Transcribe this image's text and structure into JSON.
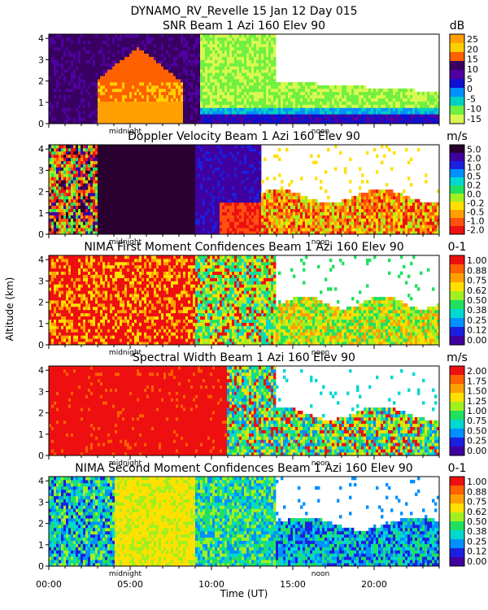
{
  "figure": {
    "title": "DYNAMO_RV_Revelle  15 Jan 12 Day 015",
    "ylabel": "Altitude (km)",
    "xlabel": "Time (UT)",
    "x_ticks": [
      "00:00",
      "05:00",
      "10:00",
      "15:00",
      "20:00"
    ],
    "markers": [
      "midnight",
      "noon"
    ]
  },
  "chart_data": [
    {
      "type": "heatmap",
      "title": "SNR Beam 1 Azi 160 Elev 90",
      "unit": "dB",
      "y_ticks": [
        "0",
        "1",
        "2",
        "3",
        "4"
      ],
      "ylim": [
        0,
        4.2
      ],
      "xlim_hours": [
        0,
        24
      ],
      "colorbar_labels": [
        "25",
        "20",
        "15",
        "10",
        "5",
        "0",
        "-5",
        "-10",
        "-15"
      ],
      "colors": [
        "#ffa000",
        "#ffd000",
        "#ff6000",
        "#380060",
        "#5000a0",
        "#1010d0",
        "#0090ff",
        "#00d0c0",
        "#70f040",
        "#d8f850"
      ]
    },
    {
      "type": "heatmap",
      "title": "Doppler Velocity Beam 1 Azi 160 Elev 90",
      "unit": "m/s",
      "y_ticks": [
        "0",
        "1",
        "2",
        "3",
        "4"
      ],
      "ylim": [
        0,
        4.2
      ],
      "xlim_hours": [
        0,
        24
      ],
      "colorbar_labels": [
        "5.0",
        "2.0",
        "1.0",
        "0.5",
        "0.2",
        "0.0",
        "-0.2",
        "-0.5",
        "-1.0",
        "-2.0"
      ],
      "colors": [
        "#2a0030",
        "#4000a0",
        "#1a20e0",
        "#0090ff",
        "#00d8d0",
        "#20e060",
        "#a0f020",
        "#ffe000",
        "#ffa000",
        "#ff5010",
        "#ee1010"
      ]
    },
    {
      "type": "heatmap",
      "title": "NIMA First Moment Confidences Beam 1 Azi 160 Elev 90",
      "unit": "0-1",
      "y_ticks": [
        "0",
        "1",
        "2",
        "3",
        "4"
      ],
      "ylim": [
        0,
        4.2
      ],
      "xlim_hours": [
        0,
        24
      ],
      "colorbar_labels": [
        "1.00",
        "0.88",
        "0.75",
        "0.62",
        "0.50",
        "0.38",
        "0.25",
        "0.12",
        "0.00"
      ],
      "colors": [
        "#ee1010",
        "#ff6000",
        "#ffa000",
        "#ffe000",
        "#a0f020",
        "#20e060",
        "#00d8d0",
        "#0090ff",
        "#1a20e0",
        "#4000a0"
      ]
    },
    {
      "type": "heatmap",
      "title": "Spectral Width Beam 1 Azi 160 Elev 90",
      "unit": "m/s",
      "y_ticks": [
        "0",
        "1",
        "2",
        "3",
        "4"
      ],
      "ylim": [
        0,
        4.2
      ],
      "xlim_hours": [
        0,
        24
      ],
      "colorbar_labels": [
        "2.00",
        "1.75",
        "1.50",
        "1.25",
        "1.00",
        "0.75",
        "0.50",
        "0.25",
        "0.00"
      ],
      "colors": [
        "#ee1010",
        "#ff6000",
        "#ffa000",
        "#ffe000",
        "#a0f020",
        "#20e060",
        "#00d8d0",
        "#0090ff",
        "#1a20e0",
        "#4000a0"
      ]
    },
    {
      "type": "heatmap",
      "title": "NIMA Second Moment Confidences Beam 1 Azi 160 Elev 90",
      "unit": "0-1",
      "y_ticks": [
        "0",
        "1",
        "2",
        "3",
        "4"
      ],
      "ylim": [
        0,
        4.2
      ],
      "xlim_hours": [
        0,
        24
      ],
      "colorbar_labels": [
        "1.00",
        "0.88",
        "0.75",
        "0.62",
        "0.50",
        "0.38",
        "0.25",
        "0.12",
        "0.00"
      ],
      "colors": [
        "#ee1010",
        "#ff6000",
        "#ffa000",
        "#ffe000",
        "#a0f020",
        "#20e060",
        "#00d8d0",
        "#0090ff",
        "#1a20e0",
        "#4000a0"
      ]
    }
  ]
}
